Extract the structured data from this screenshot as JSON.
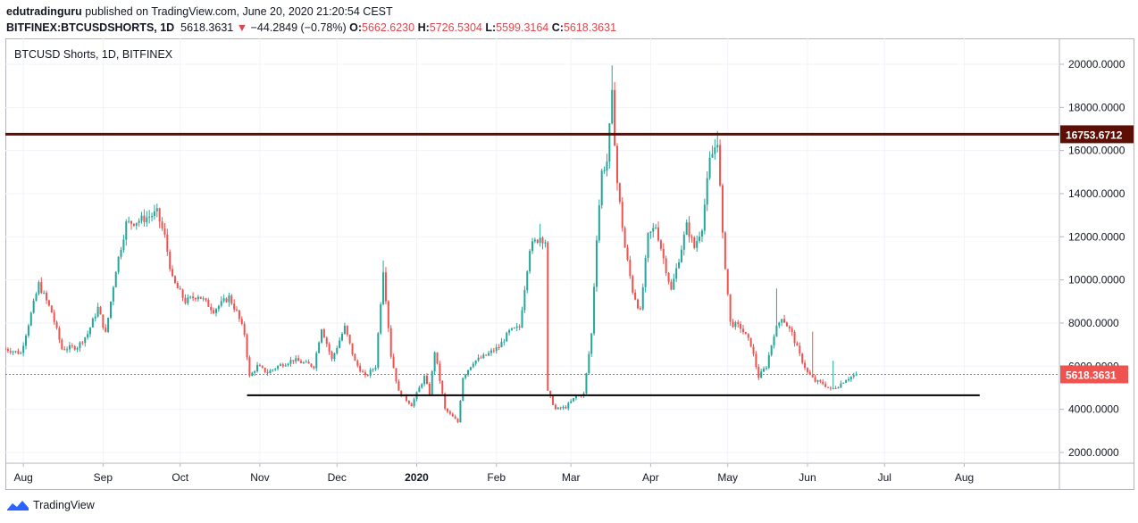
{
  "header": {
    "publisher": "edutradinguru",
    "published_text": "published on TradingView.com, June 20, 2020 21:20:54 CEST",
    "symbol": "BITFINEX:BTCUSDSHORTS, 1D",
    "last": "5618.3631",
    "change_arrow": "▼",
    "change": "−44.2849 (−0.78%)",
    "o_label": "O:",
    "o_value": "5662.6230",
    "h_label": "H:",
    "h_value": "5726.5304",
    "l_label": "L:",
    "l_value": "5599.3164",
    "c_label": "C:",
    "c_value": "5618.3631"
  },
  "footer": {
    "brand": "TradingView"
  },
  "chart_data": {
    "type": "candlestick",
    "title": "BTCUSD Shorts, 1D, BITFINEX",
    "y_axis_position": "right",
    "y_ticks": [
      "2000.0000",
      "4000.0000",
      "6000.0000",
      "8000.0000",
      "10000.0000",
      "12000.0000",
      "14000.0000",
      "16000.0000",
      "18000.0000",
      "20000.0000"
    ],
    "ylim": [
      1500,
      21200
    ],
    "x_ticks": [
      "Aug",
      "Sep",
      "Oct",
      "Nov",
      "Dec",
      "2020",
      "Feb",
      "Mar",
      "Apr",
      "May",
      "Jun",
      "Jul",
      "Aug"
    ],
    "grid": true,
    "colors": {
      "up": "#26a69a",
      "down": "#ef5350",
      "resistance": "#5d0f06",
      "support": "#000000",
      "price_line": "#ef5350"
    },
    "price_label": "5618.3631",
    "resistance_label": "16753.6712",
    "levels": [
      {
        "name": "resistance",
        "value": 16753.6712
      },
      {
        "name": "support",
        "value": 4650
      }
    ],
    "path": [
      [
        "2019-07-25",
        6800
      ],
      [
        "2019-07-31",
        6600
      ],
      [
        "2019-08-07",
        9800
      ],
      [
        "2019-08-12",
        8500
      ],
      [
        "2019-08-16",
        6800
      ],
      [
        "2019-08-22",
        6900
      ],
      [
        "2019-08-26",
        7500
      ],
      [
        "2019-08-30",
        8700
      ],
      [
        "2019-09-02",
        7500
      ],
      [
        "2019-09-06",
        10500
      ],
      [
        "2019-09-10",
        12600
      ],
      [
        "2019-09-16",
        12800
      ],
      [
        "2019-09-22",
        13100
      ],
      [
        "2019-09-25",
        12000
      ],
      [
        "2019-09-28",
        10000
      ],
      [
        "2019-10-03",
        9000
      ],
      [
        "2019-10-08",
        9300
      ],
      [
        "2019-10-14",
        8600
      ],
      [
        "2019-10-20",
        9200
      ],
      [
        "2019-10-23",
        8500
      ],
      [
        "2019-10-26",
        7500
      ],
      [
        "2019-10-28",
        5500
      ],
      [
        "2019-10-31",
        6000
      ],
      [
        "2019-11-04",
        5700
      ],
      [
        "2019-11-08",
        6000
      ],
      [
        "2019-11-14",
        6300
      ],
      [
        "2019-11-22",
        6000
      ],
      [
        "2019-11-25",
        7800
      ],
      [
        "2019-11-29",
        6300
      ],
      [
        "2019-12-04",
        7800
      ],
      [
        "2019-12-08",
        6200
      ],
      [
        "2019-12-12",
        5500
      ],
      [
        "2019-12-16",
        6000
      ],
      [
        "2019-12-19",
        10500
      ],
      [
        "2019-12-22",
        6500
      ],
      [
        "2019-12-25",
        4800
      ],
      [
        "2019-12-30",
        4200
      ],
      [
        "2020-01-04",
        5500
      ],
      [
        "2020-01-06",
        4700
      ],
      [
        "2020-01-08",
        6700
      ],
      [
        "2020-01-12",
        4000
      ],
      [
        "2020-01-17",
        3400
      ],
      [
        "2020-01-19",
        5500
      ],
      [
        "2020-01-23",
        6200
      ],
      [
        "2020-01-28",
        6500
      ],
      [
        "2020-02-02",
        6900
      ],
      [
        "2020-02-06",
        7600
      ],
      [
        "2020-02-10",
        7800
      ],
      [
        "2020-02-14",
        11500
      ],
      [
        "2020-02-18",
        12000
      ],
      [
        "2020-02-20",
        11800
      ],
      [
        "2020-02-21",
        4800
      ],
      [
        "2020-02-24",
        4000
      ],
      [
        "2020-02-28",
        4100
      ],
      [
        "2020-03-03",
        4600
      ],
      [
        "2020-03-06",
        4700
      ],
      [
        "2020-03-09",
        7500
      ],
      [
        "2020-03-11",
        12000
      ],
      [
        "2020-03-13",
        15000
      ],
      [
        "2020-03-15",
        15500
      ],
      [
        "2020-03-17",
        18500
      ],
      [
        "2020-03-19",
        14500
      ],
      [
        "2020-03-22",
        11500
      ],
      [
        "2020-03-25",
        9500
      ],
      [
        "2020-03-28",
        8500
      ],
      [
        "2020-03-31",
        12000
      ],
      [
        "2020-04-03",
        12500
      ],
      [
        "2020-04-06",
        11000
      ],
      [
        "2020-04-09",
        9500
      ],
      [
        "2020-04-12",
        11000
      ],
      [
        "2020-04-15",
        12500
      ],
      [
        "2020-04-18",
        11500
      ],
      [
        "2020-04-21",
        12500
      ],
      [
        "2020-04-24",
        15500
      ],
      [
        "2020-04-27",
        16500
      ],
      [
        "2020-04-29",
        12000
      ],
      [
        "2020-05-02",
        8000
      ],
      [
        "2020-05-06",
        7800
      ],
      [
        "2020-05-10",
        7000
      ],
      [
        "2020-05-13",
        5500
      ],
      [
        "2020-05-16",
        6000
      ],
      [
        "2020-05-19",
        7500
      ],
      [
        "2020-05-22",
        8300
      ],
      [
        "2020-05-26",
        7500
      ],
      [
        "2020-05-29",
        6500
      ],
      [
        "2020-06-01",
        5700
      ],
      [
        "2020-06-04",
        5300
      ],
      [
        "2020-06-07",
        5200
      ],
      [
        "2020-06-10",
        4900
      ],
      [
        "2020-06-13",
        5100
      ],
      [
        "2020-06-16",
        5400
      ],
      [
        "2020-06-20",
        5618.3631
      ]
    ],
    "wicks": [
      [
        "2019-12-19",
        10900
      ],
      [
        "2020-03-17",
        19950
      ],
      [
        "2020-04-27",
        16900
      ],
      [
        "2020-02-18",
        12600
      ],
      [
        "2019-09-22",
        13450
      ],
      [
        "2020-06-11",
        6250
      ],
      [
        "2020-05-20",
        9600
      ],
      [
        "2020-06-03",
        7600
      ]
    ]
  }
}
